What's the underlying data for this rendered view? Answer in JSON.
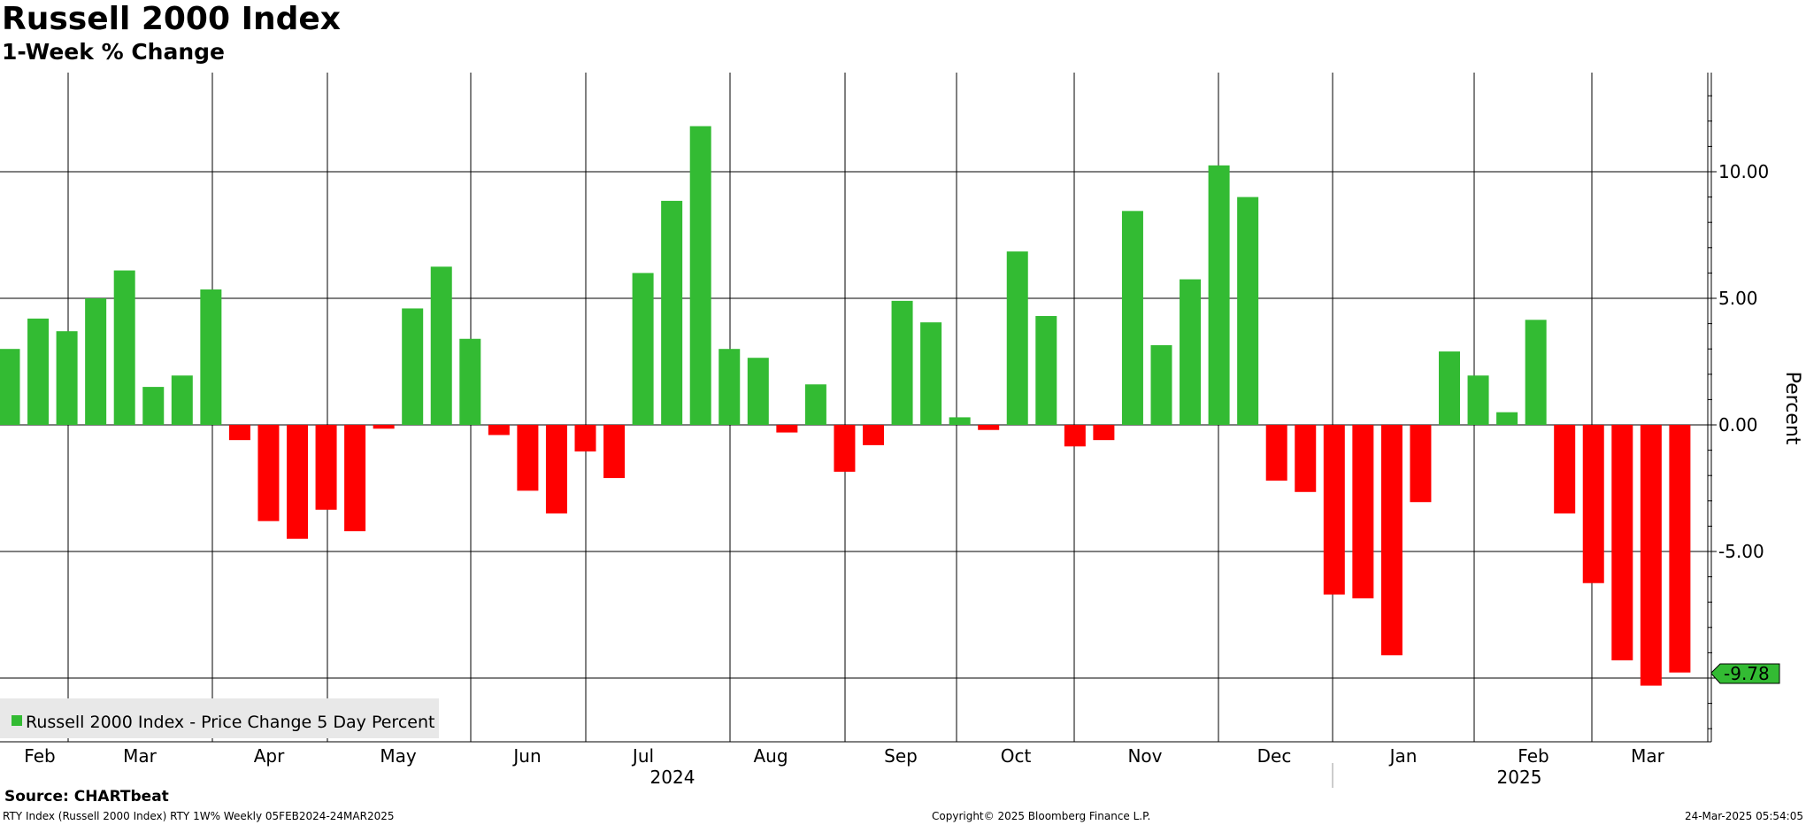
{
  "header": {
    "title": "Russell 2000 Index",
    "subtitle": "1-Week % Change"
  },
  "footer": {
    "source": "Source: CHARTbeat",
    "left": "RTY Index (Russell 2000 Index) RTY 1W% Weekly 05FEB2024-24MAR2025",
    "center": "Copyright© 2025 Bloomberg Finance L.P.",
    "right": "24-Mar-2025 05:54:05"
  },
  "colors": {
    "positive": "#33bb33",
    "negative": "#ff0000",
    "grid": "#000000",
    "legend_bg": "#e8e8e8",
    "last_value_bg": "#33bb33"
  },
  "chart_data": {
    "type": "bar",
    "title": "Russell 2000 Index",
    "subtitle": "1-Week % Change",
    "ylabel": "Percent",
    "ylim": [
      -12.5,
      13.8
    ],
    "yticks": [
      10,
      5,
      0,
      -5
    ],
    "ytick_labels": [
      "10.00",
      "5.00",
      "0.00",
      "-5.00"
    ],
    "grid": true,
    "legend_position": "bottom-left",
    "month_labels": [
      "Feb",
      "Mar",
      "Apr",
      "May",
      "Jun",
      "Jul",
      "Aug",
      "Sep",
      "Oct",
      "Nov",
      "Dec",
      "Jan",
      "Feb",
      "Mar"
    ],
    "year_labels": [
      "2024",
      "2025"
    ],
    "last_value_label": "-9.78",
    "series": [
      {
        "name": "Russell 2000 Index - Price Change 5 Day Percent",
        "x": [
          "2024-02-05",
          "2024-02-12",
          "2024-02-19",
          "2024-02-26",
          "2024-03-04",
          "2024-03-11",
          "2024-03-18",
          "2024-03-25",
          "2024-04-01",
          "2024-04-08",
          "2024-04-15",
          "2024-04-22",
          "2024-04-29",
          "2024-05-06",
          "2024-05-13",
          "2024-05-20",
          "2024-05-27",
          "2024-06-03",
          "2024-06-10",
          "2024-06-17",
          "2024-06-24",
          "2024-07-01",
          "2024-07-08",
          "2024-07-15",
          "2024-07-22",
          "2024-07-29",
          "2024-08-05",
          "2024-08-12",
          "2024-08-19",
          "2024-08-26",
          "2024-09-02",
          "2024-09-09",
          "2024-09-16",
          "2024-09-23",
          "2024-09-30",
          "2024-10-07",
          "2024-10-14",
          "2024-10-21",
          "2024-10-28",
          "2024-11-04",
          "2024-11-11",
          "2024-11-18",
          "2024-11-25",
          "2024-12-02",
          "2024-12-09",
          "2024-12-16",
          "2024-12-23",
          "2024-12-30",
          "2025-01-06",
          "2025-01-13",
          "2025-01-20",
          "2025-01-27",
          "2025-02-03",
          "2025-02-10",
          "2025-02-17",
          "2025-02-24",
          "2025-03-03",
          "2025-03-10",
          "2025-03-17"
        ],
        "values": [
          3.0,
          4.2,
          3.7,
          5.0,
          6.1,
          1.5,
          1.95,
          5.35,
          -0.6,
          -3.8,
          -4.5,
          -3.35,
          -4.2,
          -0.15,
          4.6,
          6.25,
          3.4,
          -0.4,
          -2.6,
          -3.5,
          -1.05,
          -2.1,
          6.0,
          8.85,
          11.8,
          3.0,
          2.65,
          -0.3,
          1.6,
          -1.85,
          -0.8,
          4.9,
          4.05,
          0.3,
          -0.2,
          6.85,
          4.3,
          -0.85,
          -0.6,
          8.45,
          3.15,
          5.75,
          10.25,
          9.0,
          -2.2,
          -2.65,
          -6.7,
          -6.85,
          -9.1,
          -3.05,
          2.9,
          1.95,
          0.5,
          4.15,
          -3.5,
          -6.25,
          -9.3,
          -10.3,
          -9.78
        ]
      }
    ]
  }
}
